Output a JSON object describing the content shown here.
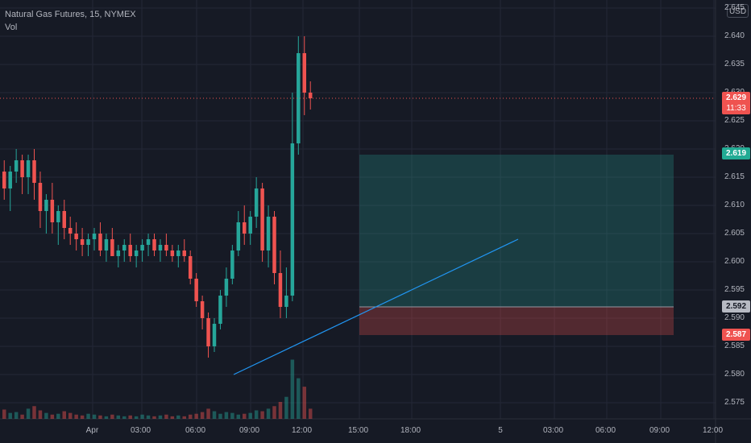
{
  "legend": {
    "symbol": "Natural Gas Futures, 15, NYMEX",
    "indicator": "Vol"
  },
  "currency": "USD",
  "price_axis": {
    "ticks": [
      "2.645",
      "2.640",
      "2.635",
      "2.630",
      "2.625",
      "2.620",
      "2.615",
      "2.610",
      "2.605",
      "2.600",
      "2.595",
      "2.590",
      "2.585",
      "2.580",
      "2.575"
    ]
  },
  "time_axis": {
    "ticks": [
      "Apr",
      "03:00",
      "06:00",
      "09:00",
      "12:00",
      "15:00",
      "18:00",
      "5",
      "03:00",
      "06:00",
      "09:00",
      "12:00"
    ]
  },
  "price_labels": {
    "last": {
      "price": "2.629",
      "countdown": "11:33"
    },
    "target": "2.619",
    "entry": "2.592",
    "stop": "2.587"
  },
  "colors": {
    "background": "#161a25",
    "up": "#26a69a",
    "down": "#ef5350",
    "trendline": "#2196f3",
    "profit_zone": "rgba(38,166,154,0.25)",
    "loss_zone": "rgba(239,83,80,0.28)",
    "grid": "#242836"
  },
  "chart_data": {
    "type": "candlestick",
    "instrument": "Natural Gas Futures",
    "interval": "15",
    "exchange": "NYMEX",
    "ylim": [
      2.573,
      2.647
    ],
    "last_price": 2.629,
    "position": {
      "entry": 2.592,
      "target": 2.619,
      "stop": 2.587
    },
    "candles": [
      [
        2.616,
        2.618,
        2.611,
        2.613
      ],
      [
        2.613,
        2.617,
        2.609,
        2.616
      ],
      [
        2.616,
        2.62,
        2.614,
        2.618
      ],
      [
        2.618,
        2.619,
        2.612,
        2.615
      ],
      [
        2.615,
        2.619,
        2.612,
        2.618
      ],
      [
        2.618,
        2.62,
        2.611,
        2.614
      ],
      [
        2.614,
        2.616,
        2.606,
        2.609
      ],
      [
        2.609,
        2.612,
        2.605,
        2.611
      ],
      [
        2.611,
        2.614,
        2.605,
        2.607
      ],
      [
        2.607,
        2.61,
        2.603,
        2.609
      ],
      [
        2.609,
        2.611,
        2.604,
        2.606
      ],
      [
        2.606,
        2.608,
        2.603,
        2.605
      ],
      [
        2.605,
        2.607,
        2.602,
        2.604
      ],
      [
        2.604,
        2.606,
        2.601,
        2.603
      ],
      [
        2.603,
        2.605,
        2.601,
        2.604
      ],
      [
        2.604,
        2.606,
        2.602,
        2.605
      ],
      [
        2.605,
        2.607,
        2.601,
        2.602
      ],
      [
        2.602,
        2.605,
        2.6,
        2.604
      ],
      [
        2.604,
        2.606,
        2.601,
        2.601
      ],
      [
        2.601,
        2.603,
        2.599,
        2.602
      ],
      [
        2.602,
        2.604,
        2.6,
        2.603
      ],
      [
        2.603,
        2.605,
        2.6,
        2.601
      ],
      [
        2.601,
        2.603,
        2.599,
        2.602
      ],
      [
        2.602,
        2.604,
        2.6,
        2.603
      ],
      [
        2.603,
        2.605,
        2.601,
        2.604
      ],
      [
        2.604,
        2.605,
        2.601,
        2.602
      ],
      [
        2.602,
        2.604,
        2.6,
        2.603
      ],
      [
        2.603,
        2.605,
        2.601,
        2.602
      ],
      [
        2.602,
        2.603,
        2.6,
        2.601
      ],
      [
        2.601,
        2.603,
        2.599,
        2.602
      ],
      [
        2.602,
        2.604,
        2.6,
        2.601
      ],
      [
        2.601,
        2.602,
        2.596,
        2.597
      ],
      [
        2.597,
        2.598,
        2.592,
        2.593
      ],
      [
        2.593,
        2.594,
        2.588,
        2.59
      ],
      [
        2.59,
        2.591,
        2.583,
        2.585
      ],
      [
        2.585,
        2.59,
        2.584,
        2.589
      ],
      [
        2.589,
        2.595,
        2.588,
        2.594
      ],
      [
        2.594,
        2.599,
        2.592,
        2.597
      ],
      [
        2.597,
        2.603,
        2.596,
        2.602
      ],
      [
        2.602,
        2.609,
        2.601,
        2.607
      ],
      [
        2.607,
        2.61,
        2.603,
        2.605
      ],
      [
        2.605,
        2.609,
        2.603,
        2.608
      ],
      [
        2.608,
        2.615,
        2.606,
        2.613
      ],
      [
        2.613,
        2.614,
        2.6,
        2.602
      ],
      [
        2.602,
        2.61,
        2.599,
        2.608
      ],
      [
        2.608,
        2.609,
        2.596,
        2.598
      ],
      [
        2.598,
        2.602,
        2.59,
        2.592
      ],
      [
        2.592,
        2.599,
        2.59,
        2.594
      ],
      [
        2.594,
        2.63,
        2.593,
        2.621
      ],
      [
        2.621,
        2.64,
        2.619,
        2.637
      ],
      [
        2.637,
        2.64,
        2.626,
        2.63
      ],
      [
        2.63,
        2.632,
        2.627,
        2.629
      ]
    ],
    "volume": [
      11,
      7,
      8,
      5,
      12,
      15,
      10,
      7,
      5,
      6,
      9,
      7,
      5,
      4,
      6,
      5,
      4,
      3,
      5,
      4,
      3,
      4,
      3,
      5,
      4,
      3,
      4,
      5,
      3,
      4,
      3,
      5,
      6,
      8,
      12,
      9,
      6,
      8,
      7,
      5,
      6,
      7,
      10,
      9,
      12,
      15,
      20,
      26,
      70,
      48,
      38,
      12
    ]
  }
}
